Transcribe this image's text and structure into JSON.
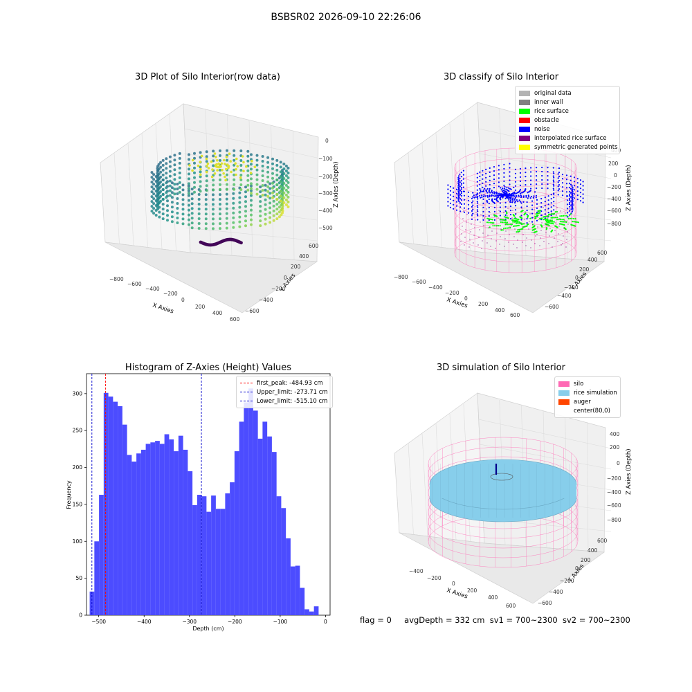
{
  "suptitle": "BSBSR02 2026-09-10 22:26:06",
  "colors": {
    "original_data": "#b3b3b3",
    "inner_wall": "#808080",
    "rice_surface": "#00ff00",
    "obstacle": "#ff0000",
    "noise": "#0000ff",
    "interpolated": "#800080",
    "symmetric": "#ffff00",
    "silo": "#ff69b4",
    "rice_sim": "#87ceeb",
    "auger": "#ff4500",
    "hist_bar": "#4c4cff"
  },
  "chart_data": [
    {
      "type": "scatter",
      "title": "3D Plot of Silo Interior(row data)",
      "xlabel": "X Axies",
      "ylabel": "Y Axies",
      "zlabel": "Z Axies (Depth)",
      "x_ticks": [
        "−800",
        "−600",
        "−400",
        "−200",
        "0",
        "200",
        "400",
        "600"
      ],
      "y_ticks": [
        "−600",
        "−400",
        "−200",
        "0",
        "200",
        "400",
        "600"
      ],
      "z_ticks": [
        "0",
        "−100",
        "−200",
        "−300",
        "−400",
        "−500"
      ],
      "colormap": "viridis"
    },
    {
      "type": "scatter",
      "title": "3D classify of Silo Interior",
      "xlabel": "X Axies",
      "ylabel": "Y Axies",
      "zlabel": "Z Axies (Depth)",
      "x_ticks": [
        "−800",
        "−600",
        "−400",
        "−200",
        "0",
        "200",
        "400",
        "600"
      ],
      "y_ticks": [
        "−600",
        "−400",
        "−200",
        "0",
        "200",
        "400",
        "600"
      ],
      "z_ticks": [
        "400",
        "200",
        "0",
        "−200",
        "−400",
        "−600",
        "−800"
      ],
      "legend": [
        "original data",
        "inner wall",
        "rice surface",
        "obstacle",
        "noise",
        "interpolated rice surface",
        "symmetric generated points"
      ]
    },
    {
      "type": "bar",
      "title": "Histogram of Z-Axies (Height) Values",
      "xlabel": "Depth (cm)",
      "ylabel": "Frequency",
      "xlim": [
        -527,
        10
      ],
      "ylim": [
        0,
        327
      ],
      "x_ticks": [
        -500,
        -400,
        -300,
        -200,
        -100,
        0
      ],
      "x_tick_labels": [
        "−500",
        "−400",
        "−300",
        "−200",
        "−100",
        "0"
      ],
      "y_ticks": [
        0,
        50,
        100,
        150,
        200,
        250,
        300
      ],
      "bin_start": -520,
      "bin_width": 10.3,
      "values": [
        32,
        100,
        163,
        301,
        296,
        289,
        283,
        258,
        217,
        208,
        219,
        224,
        232,
        234,
        236,
        232,
        245,
        238,
        222,
        243,
        224,
        195,
        149,
        163,
        161,
        140,
        162,
        144,
        144,
        165,
        180,
        222,
        262,
        288,
        307,
        277,
        239,
        262,
        242,
        221,
        161,
        145,
        104,
        66,
        67,
        37,
        8,
        5,
        12
      ],
      "lines": [
        {
          "label": "first_peak: -484.93 cm",
          "x": -484.93,
          "color": "#ff0000"
        },
        {
          "label": "Upper_limit: -273.71 cm",
          "x": -273.71,
          "color": "#0000cc"
        },
        {
          "label": "Lower_limit: -515.10 cm",
          "x": -515.1,
          "color": "#0000cc"
        }
      ]
    },
    {
      "type": "scatter",
      "title": "3D simulation of Silo Interior",
      "xlabel": "X Axies",
      "ylabel": "Y Axies",
      "zlabel": "Z Axies (Depth)",
      "x_ticks": [
        "−400",
        "−200",
        "0",
        "200",
        "400",
        "600"
      ],
      "y_ticks": [
        "−600",
        "−400",
        "−200",
        "0",
        "200",
        "400",
        "600"
      ],
      "z_ticks": [
        "400",
        "200",
        "0",
        "−200",
        "−400",
        "−600",
        "−800"
      ],
      "legend": [
        "silo",
        "rice simulation",
        "auger",
        "center(80,0)"
      ]
    }
  ],
  "status": {
    "flag": "flag = 0",
    "avg": "avgDepth = 332 cm",
    "sv1": "sv1 = 700~2300",
    "sv2": "sv2 = 700~2300"
  }
}
